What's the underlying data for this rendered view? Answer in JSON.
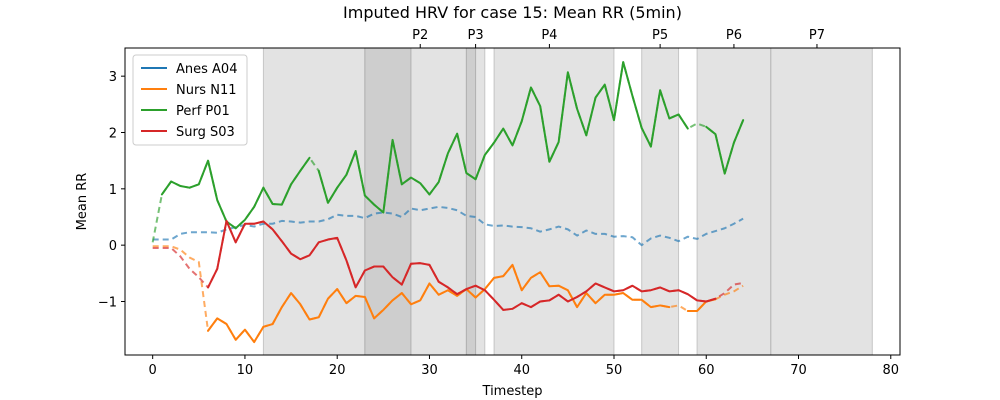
{
  "chart_data": {
    "type": "line",
    "title": "Imputed HRV for case 15: Mean RR (5min)",
    "xlabel": "Timestep",
    "ylabel": "Mean RR",
    "xlim": [
      -3,
      81
    ],
    "ylim": [
      -1.95,
      3.5
    ],
    "xticks": [
      0,
      10,
      20,
      30,
      40,
      50,
      60,
      70,
      80
    ],
    "yticks": [
      -1,
      0,
      1,
      2,
      3
    ],
    "grid": false,
    "legend_position": "top-left",
    "phase_labels": [
      {
        "label": "P2",
        "x": 29
      },
      {
        "label": "P3",
        "x": 35
      },
      {
        "label": "P4",
        "x": 43
      },
      {
        "label": "P5",
        "x": 55
      },
      {
        "label": "P6",
        "x": 63
      },
      {
        "label": "P7",
        "x": 72
      }
    ],
    "shaded_regions": [
      {
        "x0": 12,
        "x1": 23,
        "shade": "light"
      },
      {
        "x0": 23,
        "x1": 28,
        "shade": "dark"
      },
      {
        "x0": 28,
        "x1": 34,
        "shade": "light"
      },
      {
        "x0": 34,
        "x1": 35,
        "shade": "dark"
      },
      {
        "x0": 35,
        "x1": 36,
        "shade": "light"
      },
      {
        "x0": 37,
        "x1": 50,
        "shade": "light"
      },
      {
        "x0": 53,
        "x1": 57,
        "shade": "light"
      },
      {
        "x0": 59,
        "x1": 67,
        "shade": "light"
      },
      {
        "x0": 67,
        "x1": 78,
        "shade": "light"
      }
    ],
    "series": [
      {
        "name": "Anes A04",
        "color": "#1f77b4",
        "style": "imputed-dashed",
        "x": [
          0,
          1,
          2,
          3,
          4,
          5,
          6,
          7,
          8,
          9,
          10,
          11,
          12,
          13,
          14,
          15,
          16,
          17,
          18,
          19,
          20,
          21,
          22,
          23,
          24,
          25,
          26,
          27,
          28,
          29,
          30,
          31,
          32,
          33,
          34,
          35,
          36,
          37,
          38,
          39,
          40,
          41,
          42,
          43,
          44,
          45,
          46,
          47,
          48,
          49,
          50,
          51,
          52,
          53,
          54,
          55,
          56,
          57,
          58,
          59,
          60,
          61,
          62,
          63,
          64
        ],
        "y": [
          0.1,
          0.1,
          0.1,
          0.2,
          0.23,
          0.23,
          0.23,
          0.22,
          0.28,
          0.32,
          0.36,
          0.33,
          0.38,
          0.38,
          0.43,
          0.42,
          0.4,
          0.42,
          0.42,
          0.46,
          0.54,
          0.52,
          0.52,
          0.48,
          0.56,
          0.58,
          0.56,
          0.5,
          0.65,
          0.62,
          0.65,
          0.68,
          0.66,
          0.62,
          0.52,
          0.5,
          0.37,
          0.34,
          0.35,
          0.33,
          0.32,
          0.3,
          0.24,
          0.28,
          0.33,
          0.28,
          0.17,
          0.26,
          0.2,
          0.2,
          0.15,
          0.16,
          0.14,
          0.0,
          0.12,
          0.17,
          0.13,
          0.07,
          0.15,
          0.11,
          0.2,
          0.25,
          0.3,
          0.38,
          0.47
        ]
      },
      {
        "name": "Nurs N11",
        "color": "#ff7f0e",
        "x": [
          0,
          1,
          2,
          3,
          4,
          5,
          6,
          7,
          8,
          9,
          10,
          11,
          12,
          13,
          14,
          15,
          16,
          17,
          18,
          19,
          20,
          21,
          22,
          23,
          24,
          25,
          26,
          27,
          28,
          29,
          30,
          31,
          32,
          33,
          34,
          35,
          36,
          37,
          38,
          39,
          40,
          41,
          42,
          43,
          44,
          45,
          46,
          47,
          48,
          49,
          50,
          51,
          52,
          53,
          54,
          55,
          56,
          57,
          58,
          59,
          60,
          61,
          62,
          63,
          64
        ],
        "y": [
          -0.02,
          -0.02,
          -0.02,
          -0.08,
          -0.22,
          -0.3,
          -1.52,
          -1.3,
          -1.4,
          -1.68,
          -1.5,
          -1.72,
          -1.45,
          -1.4,
          -1.1,
          -0.85,
          -1.05,
          -1.32,
          -1.28,
          -0.95,
          -0.78,
          -1.03,
          -0.9,
          -0.92,
          -1.3,
          -1.15,
          -0.98,
          -0.85,
          -1.05,
          -0.98,
          -0.68,
          -0.88,
          -0.8,
          -0.9,
          -0.78,
          -0.93,
          -0.78,
          -0.58,
          -0.55,
          -0.35,
          -0.8,
          -0.58,
          -0.48,
          -0.73,
          -0.72,
          -0.8,
          -1.1,
          -0.85,
          -1.03,
          -0.88,
          -0.88,
          -0.85,
          -0.97,
          -0.97,
          -1.1,
          -1.07,
          -1.1,
          -1.07,
          -1.17,
          -1.17,
          -1.0,
          -0.96,
          -0.88,
          -0.82,
          -0.72
        ],
        "solid_segments": [
          [
            6,
            13
          ],
          [
            13,
            56
          ],
          [
            58,
            61
          ]
        ]
      },
      {
        "name": "Perf P01",
        "color": "#2ca02c",
        "x": [
          0,
          1,
          2,
          3,
          4,
          5,
          6,
          7,
          8,
          9,
          10,
          11,
          12,
          13,
          14,
          15,
          16,
          17,
          18,
          19,
          20,
          21,
          22,
          23,
          24,
          25,
          26,
          27,
          28,
          29,
          30,
          31,
          32,
          33,
          34,
          35,
          36,
          37,
          38,
          39,
          40,
          41,
          42,
          43,
          44,
          45,
          46,
          47,
          48,
          49,
          50,
          51,
          52,
          53,
          54,
          55,
          56,
          57,
          58,
          59,
          60,
          61,
          62,
          63,
          64
        ],
        "y": [
          0.05,
          0.9,
          1.13,
          1.05,
          1.02,
          1.08,
          1.5,
          0.8,
          0.42,
          0.3,
          0.45,
          0.68,
          1.02,
          0.73,
          0.72,
          1.08,
          1.32,
          1.55,
          1.32,
          0.75,
          1.02,
          1.25,
          1.67,
          0.88,
          0.72,
          0.58,
          1.87,
          1.08,
          1.2,
          1.1,
          0.9,
          1.12,
          1.63,
          1.98,
          1.28,
          1.17,
          1.6,
          1.82,
          2.07,
          1.77,
          2.2,
          2.8,
          2.47,
          1.48,
          1.83,
          3.07,
          2.42,
          1.95,
          2.62,
          2.85,
          2.22,
          3.25,
          2.65,
          2.08,
          1.75,
          2.75,
          2.25,
          2.32,
          2.07,
          2.16,
          2.1,
          1.97,
          1.27,
          1.82,
          2.22
        ],
        "solid_segments": [
          [
            1,
            17
          ],
          [
            18,
            58
          ],
          [
            60,
            64
          ]
        ]
      },
      {
        "name": "Surg S03",
        "color": "#d62728",
        "x": [
          0,
          1,
          2,
          3,
          4,
          5,
          6,
          7,
          8,
          9,
          10,
          11,
          12,
          13,
          14,
          15,
          16,
          17,
          18,
          19,
          20,
          21,
          22,
          23,
          24,
          25,
          26,
          27,
          28,
          29,
          30,
          31,
          32,
          33,
          34,
          35,
          36,
          37,
          38,
          39,
          40,
          41,
          42,
          43,
          44,
          45,
          46,
          47,
          48,
          49,
          50,
          51,
          52,
          53,
          54,
          55,
          56,
          57,
          58,
          59,
          60,
          61,
          62,
          63,
          64
        ],
        "y": [
          -0.05,
          -0.05,
          -0.05,
          -0.2,
          -0.42,
          -0.57,
          -0.75,
          -0.42,
          0.43,
          0.05,
          0.38,
          0.38,
          0.42,
          0.28,
          0.07,
          -0.15,
          -0.25,
          -0.18,
          0.05,
          0.1,
          0.13,
          -0.27,
          -0.75,
          -0.45,
          -0.38,
          -0.38,
          -0.57,
          -0.7,
          -0.33,
          -0.32,
          -0.35,
          -0.65,
          -0.75,
          -0.87,
          -0.78,
          -0.72,
          -0.8,
          -0.97,
          -1.15,
          -1.13,
          -1.03,
          -1.1,
          -1.0,
          -0.98,
          -0.88,
          -1.0,
          -0.92,
          -0.82,
          -0.68,
          -0.75,
          -0.82,
          -0.8,
          -0.72,
          -0.82,
          -0.8,
          -0.75,
          -0.82,
          -0.8,
          -0.87,
          -0.98,
          -1.0,
          -0.95,
          -0.85,
          -0.7,
          -0.67
        ],
        "solid_segments": [
          [
            6,
            61
          ]
        ]
      }
    ]
  }
}
